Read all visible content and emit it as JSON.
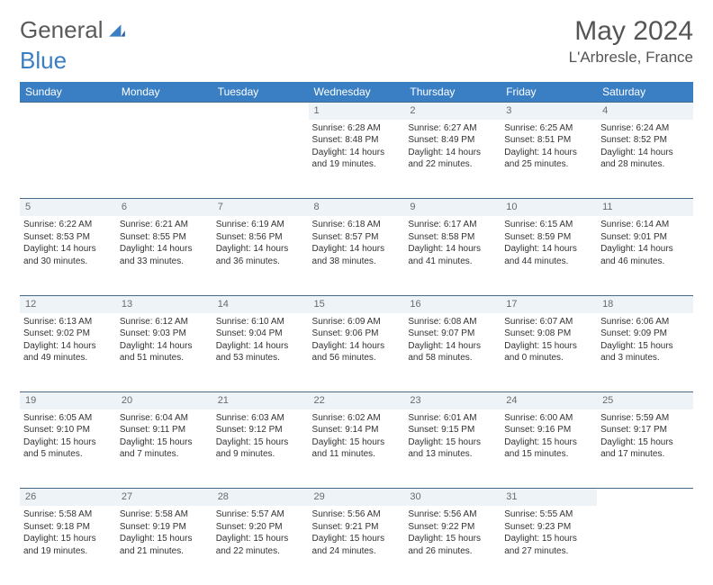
{
  "brand": {
    "part1": "General",
    "part2": "Blue"
  },
  "title": "May 2024",
  "location": "L'Arbresle, France",
  "header_bg": "#3a7fc4",
  "daynum_bg": "#eef3f8",
  "days_of_week": [
    "Sunday",
    "Monday",
    "Tuesday",
    "Wednesday",
    "Thursday",
    "Friday",
    "Saturday"
  ],
  "weeks": [
    {
      "nums": [
        "",
        "",
        "",
        "1",
        "2",
        "3",
        "4"
      ],
      "cells": [
        null,
        null,
        null,
        {
          "sunrise": "6:28 AM",
          "sunset": "8:48 PM",
          "dl1": "14 hours",
          "dl2": "and 19 minutes."
        },
        {
          "sunrise": "6:27 AM",
          "sunset": "8:49 PM",
          "dl1": "14 hours",
          "dl2": "and 22 minutes."
        },
        {
          "sunrise": "6:25 AM",
          "sunset": "8:51 PM",
          "dl1": "14 hours",
          "dl2": "and 25 minutes."
        },
        {
          "sunrise": "6:24 AM",
          "sunset": "8:52 PM",
          "dl1": "14 hours",
          "dl2": "and 28 minutes."
        }
      ]
    },
    {
      "nums": [
        "5",
        "6",
        "7",
        "8",
        "9",
        "10",
        "11"
      ],
      "cells": [
        {
          "sunrise": "6:22 AM",
          "sunset": "8:53 PM",
          "dl1": "14 hours",
          "dl2": "and 30 minutes."
        },
        {
          "sunrise": "6:21 AM",
          "sunset": "8:55 PM",
          "dl1": "14 hours",
          "dl2": "and 33 minutes."
        },
        {
          "sunrise": "6:19 AM",
          "sunset": "8:56 PM",
          "dl1": "14 hours",
          "dl2": "and 36 minutes."
        },
        {
          "sunrise": "6:18 AM",
          "sunset": "8:57 PM",
          "dl1": "14 hours",
          "dl2": "and 38 minutes."
        },
        {
          "sunrise": "6:17 AM",
          "sunset": "8:58 PM",
          "dl1": "14 hours",
          "dl2": "and 41 minutes."
        },
        {
          "sunrise": "6:15 AM",
          "sunset": "8:59 PM",
          "dl1": "14 hours",
          "dl2": "and 44 minutes."
        },
        {
          "sunrise": "6:14 AM",
          "sunset": "9:01 PM",
          "dl1": "14 hours",
          "dl2": "and 46 minutes."
        }
      ]
    },
    {
      "nums": [
        "12",
        "13",
        "14",
        "15",
        "16",
        "17",
        "18"
      ],
      "cells": [
        {
          "sunrise": "6:13 AM",
          "sunset": "9:02 PM",
          "dl1": "14 hours",
          "dl2": "and 49 minutes."
        },
        {
          "sunrise": "6:12 AM",
          "sunset": "9:03 PM",
          "dl1": "14 hours",
          "dl2": "and 51 minutes."
        },
        {
          "sunrise": "6:10 AM",
          "sunset": "9:04 PM",
          "dl1": "14 hours",
          "dl2": "and 53 minutes."
        },
        {
          "sunrise": "6:09 AM",
          "sunset": "9:06 PM",
          "dl1": "14 hours",
          "dl2": "and 56 minutes."
        },
        {
          "sunrise": "6:08 AM",
          "sunset": "9:07 PM",
          "dl1": "14 hours",
          "dl2": "and 58 minutes."
        },
        {
          "sunrise": "6:07 AM",
          "sunset": "9:08 PM",
          "dl1": "15 hours",
          "dl2": "and 0 minutes."
        },
        {
          "sunrise": "6:06 AM",
          "sunset": "9:09 PM",
          "dl1": "15 hours",
          "dl2": "and 3 minutes."
        }
      ]
    },
    {
      "nums": [
        "19",
        "20",
        "21",
        "22",
        "23",
        "24",
        "25"
      ],
      "cells": [
        {
          "sunrise": "6:05 AM",
          "sunset": "9:10 PM",
          "dl1": "15 hours",
          "dl2": "and 5 minutes."
        },
        {
          "sunrise": "6:04 AM",
          "sunset": "9:11 PM",
          "dl1": "15 hours",
          "dl2": "and 7 minutes."
        },
        {
          "sunrise": "6:03 AM",
          "sunset": "9:12 PM",
          "dl1": "15 hours",
          "dl2": "and 9 minutes."
        },
        {
          "sunrise": "6:02 AM",
          "sunset": "9:14 PM",
          "dl1": "15 hours",
          "dl2": "and 11 minutes."
        },
        {
          "sunrise": "6:01 AM",
          "sunset": "9:15 PM",
          "dl1": "15 hours",
          "dl2": "and 13 minutes."
        },
        {
          "sunrise": "6:00 AM",
          "sunset": "9:16 PM",
          "dl1": "15 hours",
          "dl2": "and 15 minutes."
        },
        {
          "sunrise": "5:59 AM",
          "sunset": "9:17 PM",
          "dl1": "15 hours",
          "dl2": "and 17 minutes."
        }
      ]
    },
    {
      "nums": [
        "26",
        "27",
        "28",
        "29",
        "30",
        "31",
        ""
      ],
      "cells": [
        {
          "sunrise": "5:58 AM",
          "sunset": "9:18 PM",
          "dl1": "15 hours",
          "dl2": "and 19 minutes."
        },
        {
          "sunrise": "5:58 AM",
          "sunset": "9:19 PM",
          "dl1": "15 hours",
          "dl2": "and 21 minutes."
        },
        {
          "sunrise": "5:57 AM",
          "sunset": "9:20 PM",
          "dl1": "15 hours",
          "dl2": "and 22 minutes."
        },
        {
          "sunrise": "5:56 AM",
          "sunset": "9:21 PM",
          "dl1": "15 hours",
          "dl2": "and 24 minutes."
        },
        {
          "sunrise": "5:56 AM",
          "sunset": "9:22 PM",
          "dl1": "15 hours",
          "dl2": "and 26 minutes."
        },
        {
          "sunrise": "5:55 AM",
          "sunset": "9:23 PM",
          "dl1": "15 hours",
          "dl2": "and 27 minutes."
        },
        null
      ]
    }
  ]
}
